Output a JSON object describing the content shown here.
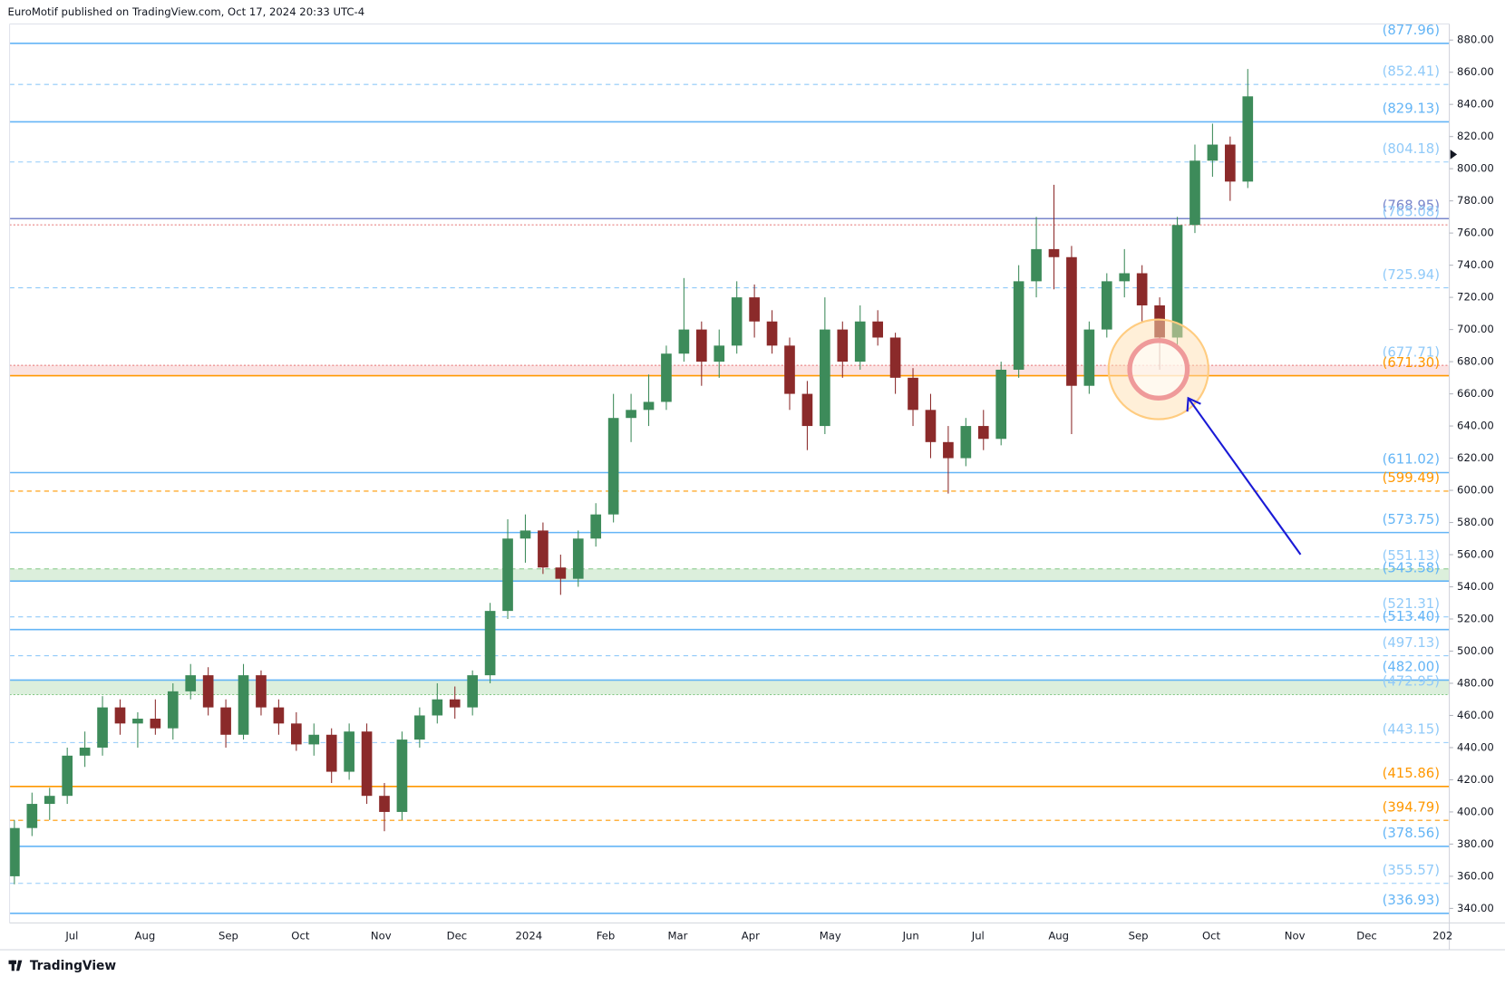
{
  "header": "EuroMotif published on TradingView.com, Oct 17, 2024 20:33 UTC-4",
  "footer": "TradingView",
  "chart_data": {
    "type": "candlestick",
    "up_color": "#3d8b5a",
    "down_color": "#8b2a2a",
    "ylim": [
      331,
      890
    ],
    "yticks": [
      {
        "value": 880,
        "label": "880.00"
      },
      {
        "value": 860,
        "label": "860.00"
      },
      {
        "value": 840,
        "label": "840.00"
      },
      {
        "value": 820,
        "label": "820.00"
      },
      {
        "value": 800,
        "label": "800.00"
      },
      {
        "value": 780,
        "label": "780.00"
      },
      {
        "value": 760,
        "label": "760.00"
      },
      {
        "value": 740,
        "label": "740.00"
      },
      {
        "value": 720,
        "label": "720.00"
      },
      {
        "value": 700,
        "label": "700.00"
      },
      {
        "value": 680,
        "label": "680.00"
      },
      {
        "value": 660,
        "label": "660.00"
      },
      {
        "value": 640,
        "label": "640.00"
      },
      {
        "value": 620,
        "label": "620.00"
      },
      {
        "value": 600,
        "label": "600.00"
      },
      {
        "value": 580,
        "label": "580.00"
      },
      {
        "value": 560,
        "label": "560.00"
      },
      {
        "value": 540,
        "label": "540.00"
      },
      {
        "value": 520,
        "label": "520.00"
      },
      {
        "value": 500,
        "label": "500.00"
      },
      {
        "value": 480,
        "label": "480.00"
      },
      {
        "value": 460,
        "label": "460.00"
      },
      {
        "value": 440,
        "label": "440.00"
      },
      {
        "value": 420,
        "label": "420.00"
      },
      {
        "value": 400,
        "label": "400.00"
      },
      {
        "value": 380,
        "label": "380.00"
      },
      {
        "value": 360,
        "label": "360.00"
      },
      {
        "value": 340,
        "label": "340.00"
      }
    ],
    "time_labels": [
      "Jul",
      "Aug",
      "Sep",
      "Oct",
      "Nov",
      "Dec",
      "2024",
      "Feb",
      "Mar",
      "Apr",
      "May",
      "Jun",
      "Jul",
      "Aug",
      "Sep",
      "Oct",
      "Nov",
      "Dec",
      "202"
    ],
    "open": [
      360,
      390,
      405,
      410,
      435,
      440,
      465,
      455,
      458,
      452,
      475,
      485,
      465,
      448,
      485,
      465,
      455,
      442,
      448,
      425,
      450,
      410,
      400,
      445,
      460,
      470,
      465,
      485,
      525,
      570,
      575,
      552,
      545,
      570,
      585,
      645,
      650,
      655,
      685,
      700,
      680,
      690,
      720,
      705,
      690,
      660,
      640,
      700,
      680,
      705,
      695,
      670,
      650,
      630,
      620,
      640,
      632,
      675,
      730,
      750,
      745,
      665,
      700,
      730,
      735,
      715,
      695,
      765,
      805,
      815,
      792
    ],
    "high": [
      395,
      412,
      415,
      440,
      450,
      472,
      470,
      462,
      470,
      480,
      492,
      490,
      470,
      492,
      488,
      470,
      462,
      455,
      452,
      455,
      455,
      418,
      450,
      465,
      480,
      478,
      488,
      530,
      582,
      585,
      580,
      560,
      575,
      592,
      660,
      660,
      672,
      690,
      732,
      705,
      700,
      730,
      728,
      712,
      695,
      668,
      720,
      705,
      715,
      712,
      698,
      676,
      660,
      640,
      645,
      650,
      680,
      740,
      770,
      790,
      752,
      705,
      735,
      750,
      740,
      720,
      770,
      815,
      828,
      820,
      862
    ],
    "low": [
      355,
      385,
      395,
      405,
      428,
      435,
      448,
      440,
      448,
      445,
      470,
      460,
      440,
      445,
      460,
      448,
      438,
      435,
      418,
      420,
      405,
      388,
      395,
      440,
      455,
      458,
      460,
      480,
      520,
      555,
      548,
      535,
      540,
      565,
      580,
      630,
      640,
      650,
      680,
      665,
      670,
      685,
      695,
      685,
      650,
      625,
      635,
      670,
      675,
      690,
      660,
      640,
      620,
      598,
      615,
      625,
      628,
      670,
      720,
      725,
      635,
      660,
      695,
      720,
      705,
      675,
      690,
      760,
      795,
      780,
      788
    ],
    "close": [
      390,
      405,
      410,
      435,
      440,
      465,
      455,
      458,
      452,
      475,
      485,
      465,
      448,
      485,
      465,
      455,
      442,
      448,
      425,
      450,
      410,
      400,
      445,
      460,
      470,
      465,
      485,
      525,
      570,
      575,
      552,
      545,
      570,
      585,
      645,
      650,
      655,
      685,
      700,
      680,
      690,
      720,
      705,
      690,
      660,
      640,
      700,
      680,
      705,
      695,
      670,
      650,
      630,
      620,
      640,
      632,
      675,
      730,
      750,
      745,
      665,
      700,
      730,
      735,
      715,
      695,
      765,
      805,
      815,
      792,
      845
    ],
    "levels": [
      {
        "value": 877.96,
        "label": "(877.96)",
        "color": "#64b5f6",
        "style": "solid"
      },
      {
        "value": 852.41,
        "label": "(852.41)",
        "color": "#90caf9",
        "style": "dashed"
      },
      {
        "value": 829.13,
        "label": "(829.13)",
        "color": "#64b5f6",
        "style": "solid"
      },
      {
        "value": 804.18,
        "label": "(804.18)",
        "color": "#90caf9",
        "style": "dashed"
      },
      {
        "value": 768.95,
        "label": "(768.95)",
        "color": "#7986cb",
        "style": "solid"
      },
      {
        "value": 765.08,
        "label": "(765.08)",
        "color": "#e57373",
        "style": "dotted"
      },
      {
        "value": 725.94,
        "label": "(725.94)",
        "color": "#90caf9",
        "style": "dashed"
      },
      {
        "value": 677.71,
        "label": "(677.71)",
        "color": "#e57373",
        "style": "dotted"
      },
      {
        "value": 671.3,
        "label": "(671.30)",
        "color": "#ff9800",
        "style": "solid"
      },
      {
        "value": 611.02,
        "label": "(611.02)",
        "color": "#64b5f6",
        "style": "solid"
      },
      {
        "value": 599.49,
        "label": "(599.49)",
        "color": "#ff9800",
        "style": "dashed"
      },
      {
        "value": 573.75,
        "label": "(573.75)",
        "color": "#64b5f6",
        "style": "solid"
      },
      {
        "value": 551.13,
        "label": "(551.13)",
        "color": "#81c784",
        "style": "dashed"
      },
      {
        "value": 543.58,
        "label": "(543.58)",
        "color": "#64b5f6",
        "style": "solid"
      },
      {
        "value": 521.31,
        "label": "(521.31)",
        "color": "#90caf9",
        "style": "dashed"
      },
      {
        "value": 513.4,
        "label": "(513.40)",
        "color": "#64b5f6",
        "style": "solid"
      },
      {
        "value": 497.13,
        "label": "(497.13)",
        "color": "#90caf9",
        "style": "dashed"
      },
      {
        "value": 482.0,
        "label": "(482.00)",
        "color": "#64b5f6",
        "style": "solid"
      },
      {
        "value": 472.95,
        "label": "(472.95)",
        "color": "#81c784",
        "style": "dotted"
      },
      {
        "value": 443.15,
        "label": "(443.15)",
        "color": "#90caf9",
        "style": "dashed"
      },
      {
        "value": 415.86,
        "label": "(415.86)",
        "color": "#ff9800",
        "style": "solid"
      },
      {
        "value": 394.79,
        "label": "(394.79)",
        "color": "#ff9800",
        "style": "dashed"
      },
      {
        "value": 378.56,
        "label": "(378.56)",
        "color": "#64b5f6",
        "style": "solid"
      },
      {
        "value": 355.57,
        "label": "(355.57)",
        "color": "#90caf9",
        "style": "dashed"
      },
      {
        "value": 336.93,
        "label": "(336.93)",
        "color": "#64b5f6",
        "style": "solid"
      }
    ],
    "zones": [
      {
        "from": 671.3,
        "to": 677.71,
        "color": "#fbe3e3"
      },
      {
        "from": 543.58,
        "to": 551.13,
        "color": "#dcefdc"
      },
      {
        "from": 472.95,
        "to": 482.0,
        "color": "#dcefdc"
      }
    ]
  }
}
